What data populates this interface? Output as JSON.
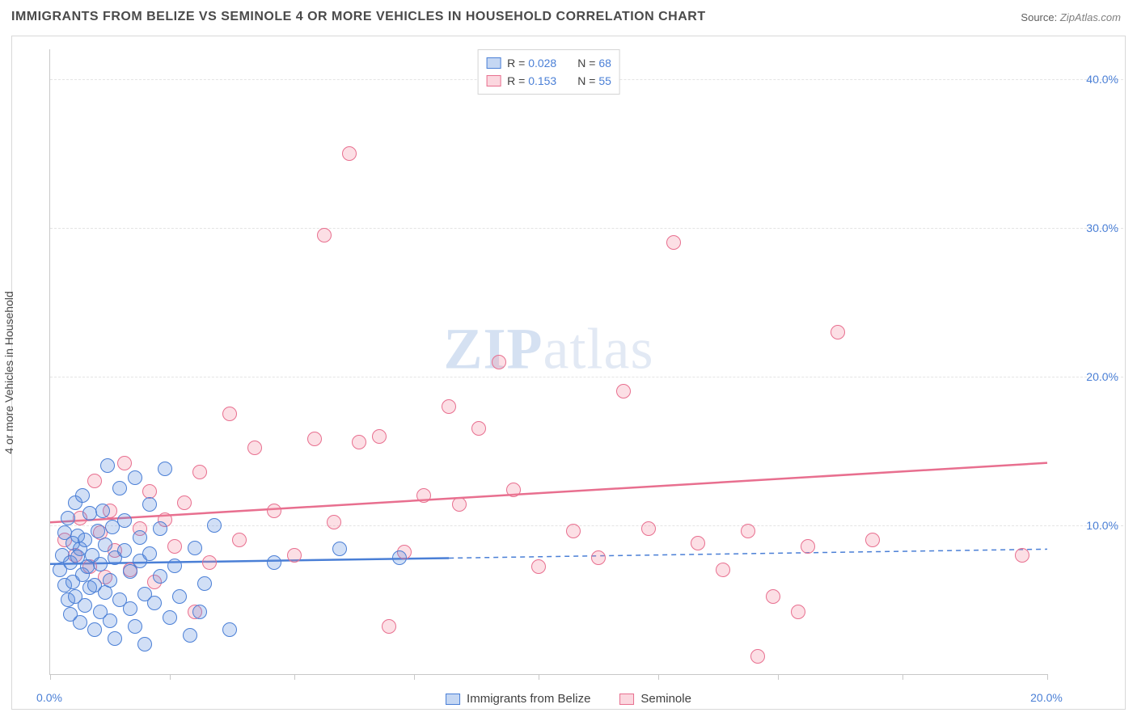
{
  "title": "IMMIGRANTS FROM BELIZE VS SEMINOLE 4 OR MORE VEHICLES IN HOUSEHOLD CORRELATION CHART",
  "source_label": "Source:",
  "source_value": "ZipAtlas.com",
  "ylabel": "4 or more Vehicles in Household",
  "watermark_a": "ZIP",
  "watermark_b": "atlas",
  "chart": {
    "type": "scatter",
    "xlim": [
      0,
      20
    ],
    "ylim": [
      0,
      42
    ],
    "xtick_positions": [
      0,
      2.4,
      4.9,
      7.3,
      9.8,
      12.2,
      14.6,
      17.1,
      20
    ],
    "xtick_labels": {
      "0": "0.0%",
      "20": "20.0%"
    },
    "ytick_positions": [
      10,
      20,
      30,
      40
    ],
    "ytick_labels": [
      "10.0%",
      "20.0%",
      "30.0%",
      "40.0%"
    ],
    "grid_color": "#e4e4e4",
    "background_color": "#ffffff",
    "marker_size": 18,
    "series": {
      "blue": {
        "label": "Immigrants from Belize",
        "R": "0.028",
        "N": "68",
        "fill": "rgba(88,141,222,0.28)",
        "stroke": "#4a7fd6",
        "trend": {
          "y_at_x0": 7.4,
          "y_at_x20": 8.4,
          "solid_until_x": 8.0
        },
        "points": [
          [
            0.2,
            7.0
          ],
          [
            0.25,
            8.0
          ],
          [
            0.3,
            6.0
          ],
          [
            0.3,
            9.5
          ],
          [
            0.35,
            5.0
          ],
          [
            0.35,
            10.5
          ],
          [
            0.4,
            7.5
          ],
          [
            0.4,
            4.0
          ],
          [
            0.45,
            8.8
          ],
          [
            0.45,
            6.2
          ],
          [
            0.5,
            11.5
          ],
          [
            0.5,
            5.2
          ],
          [
            0.55,
            7.9
          ],
          [
            0.55,
            9.3
          ],
          [
            0.6,
            3.5
          ],
          [
            0.6,
            8.4
          ],
          [
            0.65,
            6.7
          ],
          [
            0.65,
            12.0
          ],
          [
            0.7,
            4.6
          ],
          [
            0.7,
            9.0
          ],
          [
            0.75,
            7.2
          ],
          [
            0.8,
            5.8
          ],
          [
            0.8,
            10.8
          ],
          [
            0.85,
            8.0
          ],
          [
            0.9,
            6.0
          ],
          [
            0.9,
            3.0
          ],
          [
            0.95,
            9.6
          ],
          [
            1.0,
            7.4
          ],
          [
            1.0,
            4.2
          ],
          [
            1.05,
            11.0
          ],
          [
            1.1,
            5.5
          ],
          [
            1.1,
            8.7
          ],
          [
            1.15,
            14.0
          ],
          [
            1.2,
            6.3
          ],
          [
            1.2,
            3.6
          ],
          [
            1.25,
            9.9
          ],
          [
            1.3,
            7.8
          ],
          [
            1.3,
            2.4
          ],
          [
            1.4,
            12.5
          ],
          [
            1.4,
            5.0
          ],
          [
            1.5,
            8.3
          ],
          [
            1.5,
            10.3
          ],
          [
            1.6,
            4.4
          ],
          [
            1.6,
            6.9
          ],
          [
            1.7,
            13.2
          ],
          [
            1.7,
            3.2
          ],
          [
            1.8,
            7.6
          ],
          [
            1.8,
            9.2
          ],
          [
            1.9,
            5.4
          ],
          [
            1.9,
            2.0
          ],
          [
            2.0,
            8.1
          ],
          [
            2.0,
            11.4
          ],
          [
            2.1,
            4.8
          ],
          [
            2.2,
            6.6
          ],
          [
            2.2,
            9.8
          ],
          [
            2.3,
            13.8
          ],
          [
            2.4,
            3.8
          ],
          [
            2.5,
            7.3
          ],
          [
            2.6,
            5.2
          ],
          [
            2.8,
            2.6
          ],
          [
            2.9,
            8.5
          ],
          [
            3.0,
            4.2
          ],
          [
            3.1,
            6.1
          ],
          [
            3.3,
            10.0
          ],
          [
            3.6,
            3.0
          ],
          [
            4.5,
            7.5
          ],
          [
            5.8,
            8.4
          ],
          [
            7.0,
            7.8
          ]
        ]
      },
      "pink": {
        "label": "Seminole",
        "R": "0.153",
        "N": "55",
        "fill": "rgba(244,140,162,0.28)",
        "stroke": "#e86f8f",
        "trend": {
          "y_at_x0": 10.2,
          "y_at_x20": 14.2,
          "solid_until_x": 20.0
        },
        "points": [
          [
            0.3,
            9.0
          ],
          [
            0.5,
            8.0
          ],
          [
            0.6,
            10.5
          ],
          [
            0.8,
            7.2
          ],
          [
            0.9,
            13.0
          ],
          [
            1.0,
            9.5
          ],
          [
            1.1,
            6.5
          ],
          [
            1.2,
            11.0
          ],
          [
            1.3,
            8.3
          ],
          [
            1.5,
            14.2
          ],
          [
            1.6,
            7.0
          ],
          [
            1.8,
            9.8
          ],
          [
            2.0,
            12.3
          ],
          [
            2.1,
            6.2
          ],
          [
            2.3,
            10.4
          ],
          [
            2.5,
            8.6
          ],
          [
            2.7,
            11.5
          ],
          [
            2.9,
            4.2
          ],
          [
            3.0,
            13.6
          ],
          [
            3.2,
            7.5
          ],
          [
            3.6,
            17.5
          ],
          [
            3.8,
            9.0
          ],
          [
            4.1,
            15.2
          ],
          [
            4.5,
            11.0
          ],
          [
            4.9,
            8.0
          ],
          [
            5.3,
            15.8
          ],
          [
            5.5,
            29.5
          ],
          [
            5.7,
            10.2
          ],
          [
            6.0,
            35.0
          ],
          [
            6.2,
            15.6
          ],
          [
            6.6,
            16.0
          ],
          [
            6.8,
            3.2
          ],
          [
            7.1,
            8.2
          ],
          [
            7.5,
            12.0
          ],
          [
            8.0,
            18.0
          ],
          [
            8.2,
            11.4
          ],
          [
            8.6,
            16.5
          ],
          [
            9.0,
            21.0
          ],
          [
            9.3,
            12.4
          ],
          [
            9.8,
            7.2
          ],
          [
            10.5,
            9.6
          ],
          [
            11.0,
            7.8
          ],
          [
            11.5,
            19.0
          ],
          [
            12.0,
            9.8
          ],
          [
            12.5,
            29.0
          ],
          [
            13.0,
            8.8
          ],
          [
            13.5,
            7.0
          ],
          [
            14.0,
            9.6
          ],
          [
            14.5,
            5.2
          ],
          [
            15.0,
            4.2
          ],
          [
            15.2,
            8.6
          ],
          [
            15.8,
            23.0
          ],
          [
            16.5,
            9.0
          ],
          [
            14.2,
            1.2
          ],
          [
            19.5,
            8.0
          ]
        ]
      }
    }
  },
  "legend_top": [
    {
      "swatch": "blue",
      "r_label": "R =",
      "r_val": "0.028",
      "n_label": "N =",
      "n_val": "68"
    },
    {
      "swatch": "pink",
      "r_label": "R =",
      "r_val": "0.153",
      "n_label": "N =",
      "n_val": "55"
    }
  ],
  "legend_bottom": [
    {
      "swatch": "blue",
      "label": "Immigrants from Belize"
    },
    {
      "swatch": "pink",
      "label": "Seminole"
    }
  ]
}
